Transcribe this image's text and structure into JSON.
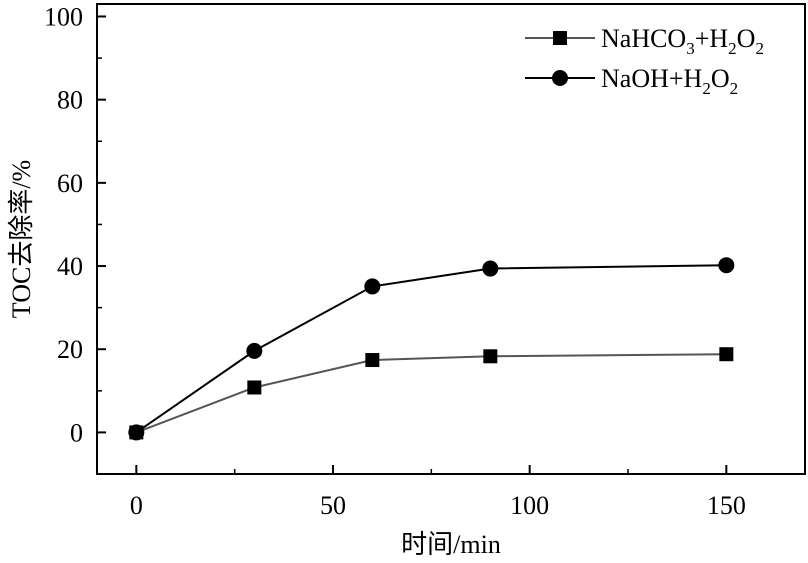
{
  "chart_data": {
    "type": "line",
    "title": "",
    "xlabel": "时间/min",
    "ylabel": "TOC去除率/%",
    "x": [
      0,
      30,
      60,
      90,
      150
    ],
    "xlim": [
      -10,
      170
    ],
    "ylim": [
      -10,
      103
    ],
    "xticks": [
      0,
      50,
      100,
      150
    ],
    "xtick_labels": [
      "0",
      "50",
      "100",
      "150"
    ],
    "yticks": [
      0,
      20,
      40,
      60,
      80,
      100
    ],
    "ytick_labels": [
      "0",
      "20",
      "40",
      "60",
      "80",
      "100"
    ],
    "grid": false,
    "legend_position": "top-right",
    "series": [
      {
        "name": "NaHCO3+H2O2",
        "legend_base": "NaHCO",
        "legend_sub1": "3",
        "legend_mid": "+H",
        "legend_sub2": "2",
        "legend_end": "O",
        "legend_sub3": "2",
        "marker": "square",
        "color": "#555555",
        "values": [
          0,
          10.8,
          17.4,
          18.3,
          18.8
        ]
      },
      {
        "name": "NaOH+H2O2",
        "legend_base": "NaOH+H",
        "legend_sub1": "2",
        "legend_mid": "O",
        "legend_sub2": "2",
        "marker": "circle",
        "color": "#000000",
        "values": [
          0,
          19.6,
          35.1,
          39.4,
          40.2
        ]
      }
    ]
  }
}
